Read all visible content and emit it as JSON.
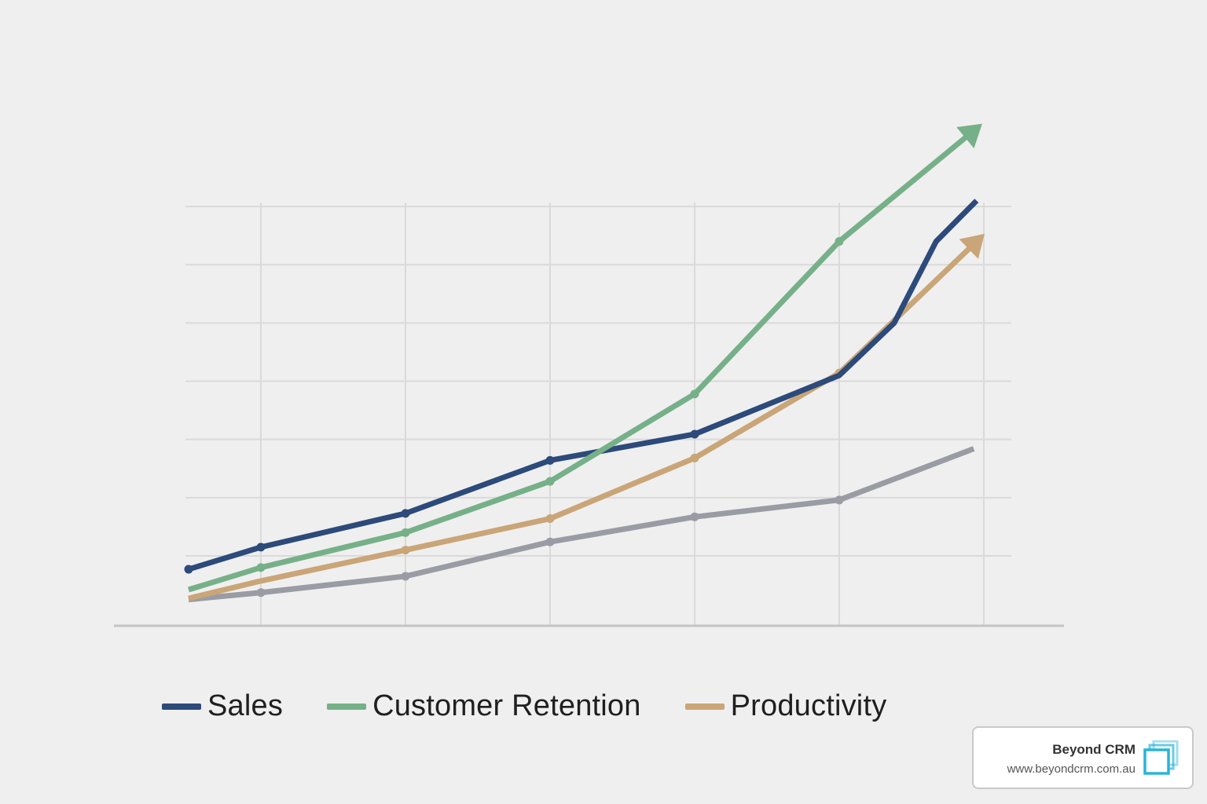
{
  "chart_data": {
    "type": "line",
    "title": "",
    "xlabel": "",
    "ylabel": "",
    "x": [
      0,
      1,
      2,
      3,
      4,
      5,
      6
    ],
    "xlim": [
      -0.5,
      6
    ],
    "ylim": [
      0,
      7.2
    ],
    "grid": true,
    "legend_position": "bottom",
    "series": [
      {
        "name": "Sales",
        "color": "#2c4a7a",
        "x": [
          -0.5,
          0,
          1,
          2,
          3,
          4,
          4.38,
          4.67,
          4.95
        ],
        "values": [
          0.97,
          1.35,
          1.93,
          2.84,
          3.29,
          4.3,
          5.2,
          6.6,
          7.3
        ],
        "markers": [
          0,
          1,
          2,
          3,
          4
        ]
      },
      {
        "name": "Customer Retention",
        "color": "#76b088",
        "x": [
          -0.5,
          0,
          1,
          2,
          3,
          4,
          4.93
        ],
        "values": [
          0.62,
          1.0,
          1.6,
          2.48,
          3.98,
          6.6,
          8.5
        ],
        "markers": [
          1,
          2,
          3,
          4,
          5
        ],
        "arrow": true
      },
      {
        "name": "Productivity",
        "color": "#c9a577",
        "x": [
          -0.5,
          0,
          1,
          2,
          3,
          4,
          4.95
        ],
        "values": [
          0.47,
          0.77,
          1.3,
          1.84,
          2.88,
          4.34,
          6.6
        ],
        "markers": [
          2,
          3,
          4,
          5
        ],
        "arrow": true
      },
      {
        "color": "#9a9ca4",
        "x": [
          -0.5,
          0,
          1,
          2,
          3,
          4,
          4.93
        ],
        "values": [
          0.45,
          0.57,
          0.85,
          1.44,
          1.87,
          2.16,
          3.04
        ],
        "markers": [
          1,
          2,
          3,
          4,
          5
        ]
      }
    ]
  },
  "legend": {
    "items": [
      {
        "label": "Sales",
        "color": "#2c4a7a"
      },
      {
        "label": "Customer Retention",
        "color": "#76b088"
      },
      {
        "label": "Productivity",
        "color": "#c9a577"
      }
    ]
  },
  "brand": {
    "name": "Beyond CRM",
    "url": "www.beyondcrm.com.au",
    "accent": "#2bb3d9"
  }
}
